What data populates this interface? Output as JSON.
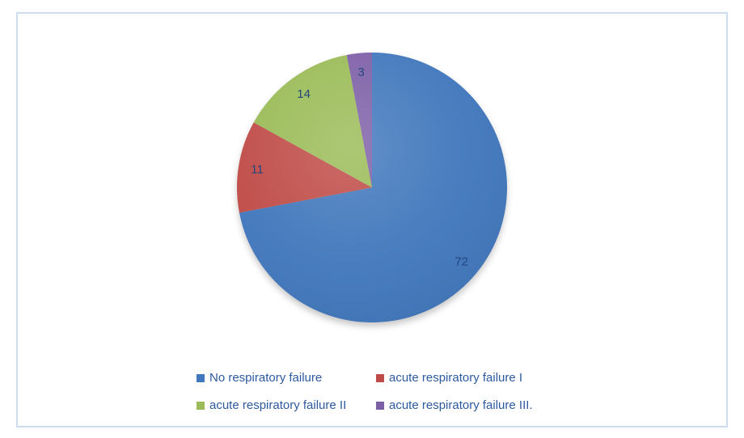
{
  "chart_data": {
    "type": "pie",
    "title": "",
    "categories": [
      "No respiratory failure",
      "acute respiratory failure I",
      "acute respiratory failure II",
      "acute respiratory failure III."
    ],
    "values": [
      72,
      11,
      14,
      3
    ],
    "colors": [
      "#4177BC",
      "#BF4B47",
      "#9ABB57",
      "#7D5FA7"
    ],
    "start_angle_deg": 0,
    "direction": "clockwise",
    "data_labels_shown": true,
    "label_color": "#24477D",
    "legend_position": "bottom",
    "legend_rows": 2,
    "legend_text_color": "#2D5A9E"
  },
  "frame": {
    "border_color": "#CDDCEF",
    "background_color": "#FFFFFF"
  }
}
